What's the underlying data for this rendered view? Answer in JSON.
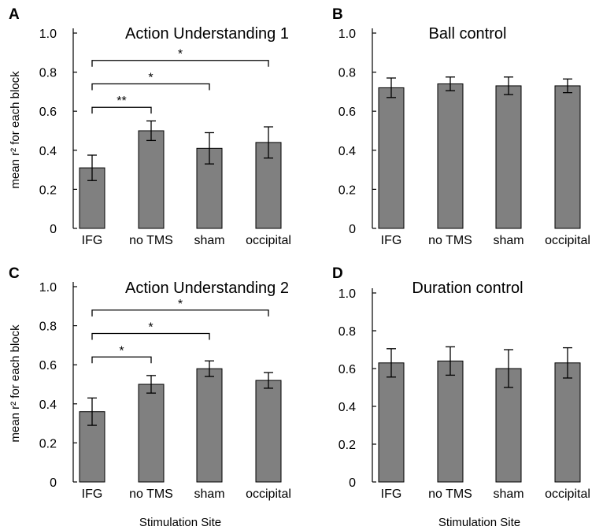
{
  "chart_data": [
    {
      "type": "bar",
      "panel": "A",
      "title": "Action Understanding 1",
      "ylabel": "mean r² for each block",
      "xlabel": "",
      "ylim": [
        0,
        1.0
      ],
      "yticks": [
        "0",
        "0.2",
        "0.4",
        "0.6",
        "0.8",
        "1.0"
      ],
      "categories": [
        "IFG",
        "no TMS",
        "sham",
        "occipital"
      ],
      "values": [
        0.31,
        0.5,
        0.41,
        0.44
      ],
      "errors": [
        0.065,
        0.05,
        0.08,
        0.08
      ],
      "bar_color": "#808080",
      "significance": [
        {
          "from": 0,
          "to": 1,
          "label": "**",
          "y": 0.62
        },
        {
          "from": 0,
          "to": 2,
          "label": "*",
          "y": 0.74
        },
        {
          "from": 0,
          "to": 3,
          "label": "*",
          "y": 0.86
        }
      ]
    },
    {
      "type": "bar",
      "panel": "B",
      "title": "Ball control",
      "ylabel": "",
      "xlabel": "",
      "ylim": [
        0,
        1.0
      ],
      "yticks": [
        "0",
        "0.2",
        "0.4",
        "0.6",
        "0.8",
        "1.0"
      ],
      "categories": [
        "IFG",
        "no TMS",
        "sham",
        "occipital"
      ],
      "values": [
        0.72,
        0.74,
        0.73,
        0.73
      ],
      "errors": [
        0.05,
        0.035,
        0.045,
        0.035
      ],
      "bar_color": "#808080",
      "significance": []
    },
    {
      "type": "bar",
      "panel": "C",
      "title": "Action Understanding 2",
      "ylabel": "mean r² for each block",
      "xlabel": "Stimulation Site",
      "ylim": [
        0,
        1.0
      ],
      "yticks": [
        "0",
        "0.2",
        "0.4",
        "0.6",
        "0.8",
        "1.0"
      ],
      "categories": [
        "IFG",
        "no TMS",
        "sham",
        "occipital"
      ],
      "values": [
        0.36,
        0.5,
        0.58,
        0.52
      ],
      "errors": [
        0.07,
        0.045,
        0.04,
        0.04
      ],
      "bar_color": "#808080",
      "significance": [
        {
          "from": 0,
          "to": 1,
          "label": "*",
          "y": 0.64
        },
        {
          "from": 0,
          "to": 2,
          "label": "*",
          "y": 0.76
        },
        {
          "from": 0,
          "to": 3,
          "label": "*",
          "y": 0.88
        }
      ]
    },
    {
      "type": "bar",
      "panel": "D",
      "title": "Duration control",
      "ylabel": "",
      "xlabel": "Stimulation Site",
      "ylim": [
        0,
        1.0
      ],
      "yticks": [
        "0",
        "0.2",
        "0.4",
        "0.6",
        "0.8",
        "1.0"
      ],
      "categories": [
        "IFG",
        "no TMS",
        "sham",
        "occipital"
      ],
      "values": [
        0.63,
        0.64,
        0.6,
        0.63
      ],
      "errors": [
        0.075,
        0.075,
        0.1,
        0.08
      ],
      "bar_color": "#808080",
      "significance": []
    }
  ]
}
